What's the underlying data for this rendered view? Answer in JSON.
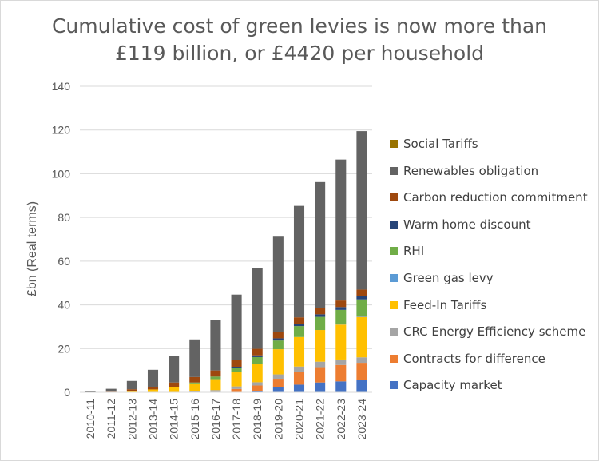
{
  "title": {
    "line1": "Cumulative cost of green levies is now more than",
    "line2": "£119 billion, or £4420 per household"
  },
  "chart_data": {
    "type": "bar",
    "stacked": true,
    "title": "Cumulative cost of green levies is now more than £119 billion, or £4420 per household",
    "xlabel": "",
    "ylabel": "£bn (Real terms)",
    "ylim": [
      0,
      140
    ],
    "yticks": [
      0,
      20,
      40,
      60,
      80,
      100,
      120,
      140
    ],
    "grid": "horizontal",
    "legend_position": "right",
    "categories": [
      "2010-11",
      "2011-12",
      "2012-13",
      "2013-14",
      "2014-15",
      "2015-16",
      "2016-17",
      "2017-18",
      "2018-19",
      "2019-20",
      "2020-21",
      "2021-22",
      "2022-23",
      "2023-24"
    ],
    "series": [
      {
        "name": "Capacity market",
        "color": "#4472c4",
        "values": [
          0,
          0,
          0,
          0,
          0,
          0,
          0,
          0,
          0.6,
          2.2,
          3.5,
          4.5,
          5.0,
          5.5
        ]
      },
      {
        "name": "Contracts for difference",
        "color": "#ed7d31",
        "values": [
          0,
          0,
          0,
          0,
          0,
          0,
          0.2,
          1.5,
          2.5,
          4.0,
          6.0,
          7.0,
          7.5,
          8.0
        ]
      },
      {
        "name": "CRC Energy Efficiency scheme",
        "color": "#a5a5a5",
        "values": [
          0,
          0,
          0,
          0,
          0,
          0.5,
          0.8,
          1.2,
          1.5,
          2.0,
          2.3,
          2.5,
          2.5,
          2.5
        ]
      },
      {
        "name": "Feed-In Tariffs",
        "color": "#ffc000",
        "values": [
          0,
          0,
          0.6,
          1.3,
          2.3,
          3.6,
          5.0,
          6.5,
          8.5,
          11.5,
          13.5,
          14.5,
          16.0,
          18.5
        ]
      },
      {
        "name": "Green gas levy",
        "color": "#5b9bd5",
        "values": [
          0,
          0,
          0,
          0,
          0,
          0,
          0,
          0,
          0,
          0,
          0,
          0,
          0.2,
          0.5
        ]
      },
      {
        "name": "RHI",
        "color": "#70ad47",
        "values": [
          0,
          0,
          0,
          0,
          0.2,
          0.4,
          1.2,
          2.0,
          3.0,
          4.0,
          5.0,
          6.0,
          6.5,
          7.5
        ]
      },
      {
        "name": "Warm home discount",
        "color": "#264478",
        "values": [
          0,
          0,
          0,
          0,
          0,
          0,
          0,
          0.5,
          0.8,
          1.0,
          1.0,
          1.2,
          1.3,
          1.5
        ]
      },
      {
        "name": "Carbon reduction commitment",
        "color": "#9e480e",
        "values": [
          0,
          0.3,
          0.8,
          1.2,
          2.0,
          2.5,
          2.8,
          3.0,
          3.0,
          3.0,
          3.0,
          3.0,
          3.0,
          3.0
        ]
      },
      {
        "name": "Renewables obligation",
        "color": "#636363",
        "values": [
          0.5,
          1.3,
          3.8,
          7.8,
          12.0,
          17.2,
          23.0,
          30.0,
          37.0,
          43.5,
          51.0,
          57.5,
          64.5,
          72.5
        ]
      },
      {
        "name": "Social Tariffs",
        "color": "#997300",
        "values": [
          0,
          0,
          0,
          0,
          0,
          0,
          0,
          0,
          0,
          0,
          0,
          0,
          0,
          0
        ]
      }
    ]
  },
  "legend_order": [
    9,
    8,
    7,
    6,
    5,
    4,
    3,
    2,
    1,
    0
  ]
}
